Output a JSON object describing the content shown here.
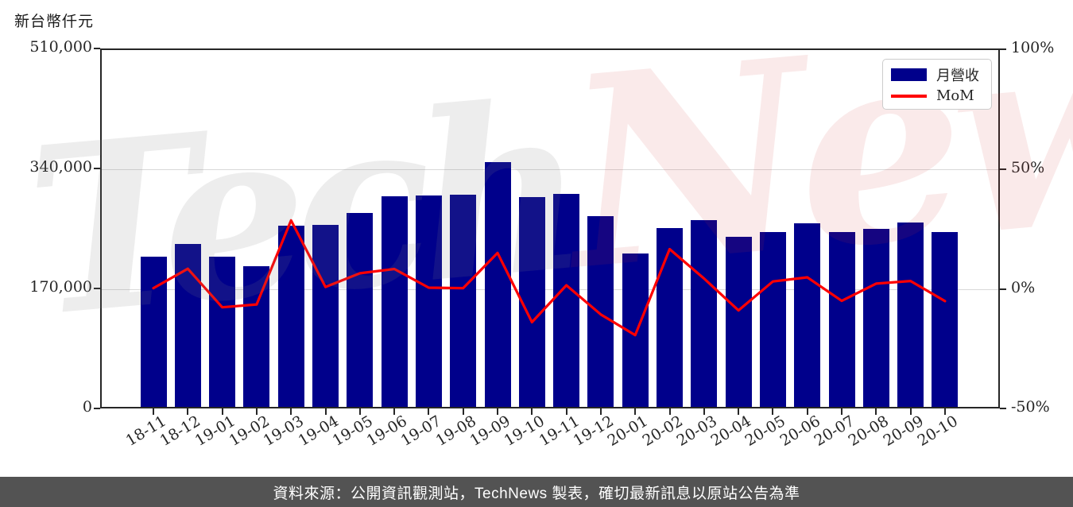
{
  "y_axis_title": "新台幣仟元",
  "legend": {
    "items": [
      {
        "label": "月營收",
        "type": "bar",
        "color": "#00008B"
      },
      {
        "label": "MoM",
        "type": "line",
        "color": "#FF0000"
      }
    ],
    "position": "upper-right"
  },
  "watermark": {
    "tech": "Tech",
    "news": "News"
  },
  "footer": {
    "text": "資料來源：公開資訊觀測站，TechNews 製表，確切最新訊息以原站公告為準",
    "background": "#535353"
  },
  "colors": {
    "bar": "#00008B",
    "line": "#FF0000",
    "axis": "#262626",
    "grid": "#d9d9d9"
  },
  "chart_data": {
    "type": "bar",
    "title": "",
    "xlabel": "",
    "ylabel": "新台幣仟元",
    "categories": [
      "18-11",
      "18-12",
      "19-01",
      "19-02",
      "19-03",
      "19-04",
      "19-05",
      "19-06",
      "19-07",
      "19-08",
      "19-09",
      "19-10",
      "19-11",
      "19-12",
      "20-01",
      "20-02",
      "20-03",
      "20-04",
      "20-05",
      "20-06",
      "20-07",
      "20-08",
      "20-09",
      "20-10"
    ],
    "series": [
      {
        "name": "月營收",
        "type": "bar",
        "axis": "left",
        "color": "#00008B",
        "values": [
          215000,
          233000,
          215000,
          201000,
          258500,
          260500,
          277500,
          300500,
          302000,
          303000,
          348500,
          300000,
          304500,
          272000,
          219500,
          256000,
          267000,
          243000,
          250500,
          262500,
          249500,
          255000,
          263500,
          250000
        ]
      },
      {
        "name": "MoM",
        "type": "line",
        "axis": "right",
        "color": "#FF0000",
        "values": [
          0.3,
          8.4,
          -7.7,
          -6.5,
          28.6,
          0.8,
          6.5,
          8.3,
          0.5,
          0.3,
          15.0,
          -13.9,
          1.5,
          -10.7,
          -19.3,
          16.6,
          4.3,
          -9.0,
          3.1,
          4.8,
          -5.0,
          2.2,
          3.3,
          -5.1
        ]
      }
    ],
    "left_axis": {
      "ticks": [
        "510,000",
        "340,000",
        "170,000",
        "0"
      ],
      "tick_values": [
        510000,
        340000,
        170000,
        0
      ],
      "min": 0,
      "max": 510000
    },
    "right_axis": {
      "ticks": [
        "100%",
        "50%",
        "0%",
        "-50%"
      ],
      "tick_values": [
        100,
        50,
        0,
        -50
      ],
      "min": -50,
      "max": 100
    },
    "grid": "horizontal",
    "gridline_values_pct": [
      50,
      0
    ],
    "legend_position": "upper-right"
  }
}
